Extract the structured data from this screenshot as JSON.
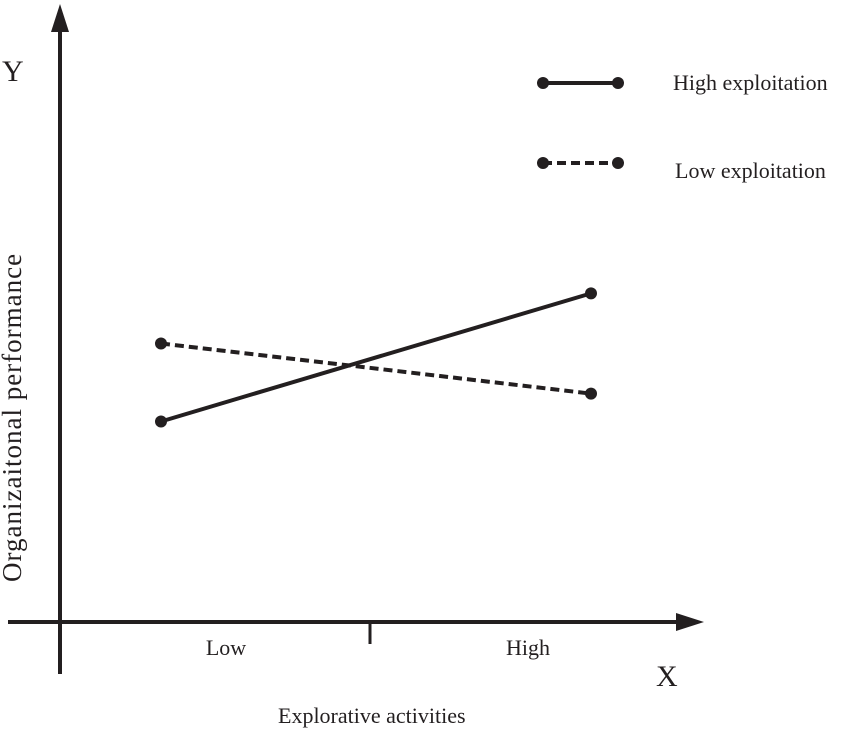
{
  "chart_data": {
    "type": "line",
    "title": "",
    "x_axis_letter": "X",
    "y_axis_letter": "Y",
    "xlabel": "Explorative activities",
    "ylabel": "Organizaitonal performance",
    "categories": [
      "Low",
      "High"
    ],
    "ylim": [
      0,
      10
    ],
    "grid": false,
    "legend_position": "top-right",
    "series": [
      {
        "name": "High exploitation",
        "style": "solid",
        "color": "#231f20",
        "values": [
          3.6,
          5.9
        ]
      },
      {
        "name": "Low exploitation",
        "style": "dashed",
        "color": "#231f20",
        "values": [
          5.0,
          4.1
        ]
      }
    ]
  }
}
